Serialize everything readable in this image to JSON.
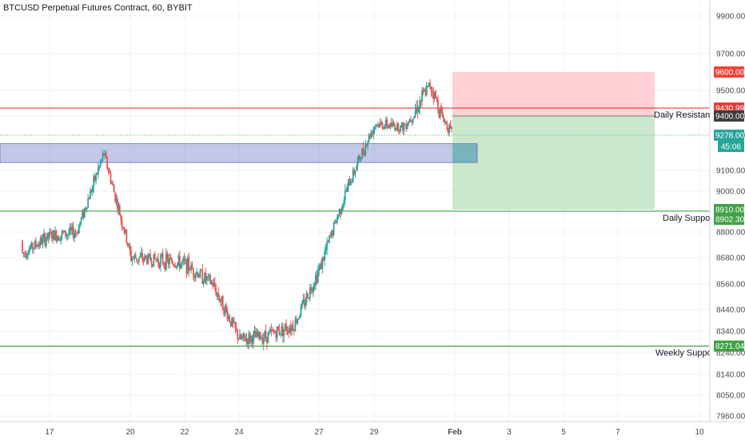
{
  "title": "BTCUSD Perpetual Futures Contract, 60, BYBIT",
  "colors": {
    "up": "#26a69a",
    "down": "#ef5350",
    "resistance": "#e53935",
    "support": "#43a047",
    "zone": "#7986cb",
    "stop_zone": "#ffcdd2",
    "target_zone": "#c8e6c9",
    "current": "#26a69a",
    "grid": "#eef0f3",
    "text": "#4a4a4a"
  },
  "price_axis": {
    "ticks": [
      "9900.00",
      "9700.00",
      "9500.00",
      "9400.00",
      "9278.00",
      "9100.00",
      "9000.00",
      "8800.00",
      "8680.00",
      "8560.00",
      "8440.00",
      "8340.00",
      "8240.00",
      "8140.00",
      "8050.00",
      "7960.00"
    ]
  },
  "time_axis": {
    "ticks": [
      "17",
      "20",
      "22",
      "24",
      "27",
      "29",
      "Feb",
      "3",
      "5",
      "7",
      "10"
    ]
  },
  "annotations": {
    "daily_resistance": "Daily Resistance",
    "daily_support": "Daily Support",
    "weekly_support": "Weekly Support"
  },
  "badges": {
    "stop_price": "9600.00",
    "resistance_price": "9430.99",
    "entry_price": "9400.00",
    "current_price": "9278.00",
    "countdown": "45:06",
    "target_price": "8910.00",
    "daily_support_price": "8902.30",
    "weekly_support_price": "8271.04"
  },
  "levels": {
    "daily_resistance": 9430.99,
    "daily_support": 8902.3,
    "weekly_support": 8271.04,
    "current": 9278.0
  },
  "position": {
    "stop": 9600,
    "entry": 9400,
    "target": 8910
  },
  "zone": {
    "high": 9235,
    "low": 9140
  },
  "chart_data": {
    "type": "candlestick",
    "title": "BTCUSD Perpetual Futures Contract, 60, BYBIT",
    "timeframe": "60",
    "exchange": "BYBIT",
    "series": [
      {
        "x": "16",
        "close": 8700
      },
      {
        "x": "17",
        "close": 8780
      },
      {
        "x": "18",
        "close": 8800
      },
      {
        "x": "19",
        "close": 9185
      },
      {
        "x": "20",
        "close": 8680
      },
      {
        "x": "21",
        "close": 8670
      },
      {
        "x": "22",
        "close": 8650
      },
      {
        "x": "23",
        "close": 8560
      },
      {
        "x": "24",
        "close": 8300
      },
      {
        "x": "25",
        "close": 8320
      },
      {
        "x": "26",
        "close": 8370
      },
      {
        "x": "27",
        "close": 8650
      },
      {
        "x": "28",
        "close": 9030
      },
      {
        "x": "29",
        "close": 9350
      },
      {
        "x": "30",
        "close": 9330
      },
      {
        "x": "31",
        "close": 9530
      },
      {
        "x": "Feb",
        "close": 9278
      }
    ],
    "horizontal_levels": [
      {
        "name": "Daily Resistance",
        "value": 9430.99
      },
      {
        "name": "Daily Support",
        "value": 8902.3
      },
      {
        "name": "Weekly Support",
        "value": 8271.04
      }
    ],
    "short_position": {
      "entry": 9400.0,
      "stop": 9600.0,
      "target": 8910.0
    },
    "last_price": 9278.0
  }
}
